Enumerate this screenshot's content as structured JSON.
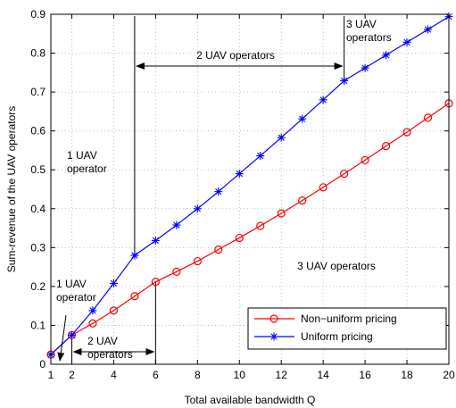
{
  "chart_data": {
    "type": "line",
    "title": "",
    "xlabel": "Total available bandwidth Q",
    "ylabel": "Sum-revenue of the UAV operators",
    "xlim": [
      1,
      20
    ],
    "ylim": [
      0,
      0.9
    ],
    "grid": true,
    "x_ticks": [
      2,
      4,
      6,
      8,
      10,
      12,
      14,
      16,
      18,
      20
    ],
    "y_ticks": [
      0,
      0.1,
      0.2,
      0.3,
      0.4,
      0.5,
      0.6,
      0.7,
      0.8,
      0.9
    ],
    "x_tick_labels": [
      "2",
      "4",
      "6",
      "8",
      "10",
      "12",
      "14",
      "16",
      "18",
      "20"
    ],
    "y_tick_labels": [
      "0",
      "0.1",
      "0.2",
      "0.3",
      "0.4",
      "0.5",
      "0.6",
      "0.7",
      "0.8",
      "0.9"
    ],
    "x_extra_label": "1",
    "x": [
      1,
      2,
      3,
      4,
      5,
      6,
      7,
      8,
      9,
      10,
      11,
      12,
      13,
      14,
      15,
      16,
      17,
      18,
      19,
      20
    ],
    "series": [
      {
        "name": "Non−uniform pricing",
        "color": "#ff0000",
        "marker": "circle",
        "values": [
          0.025,
          0.075,
          0.105,
          0.138,
          0.175,
          0.212,
          0.238,
          0.265,
          0.295,
          0.325,
          0.356,
          0.388,
          0.421,
          0.455,
          0.49,
          0.525,
          0.561,
          0.597,
          0.634,
          0.671
        ]
      },
      {
        "name": "Uniform pricing",
        "color": "#0000ff",
        "marker": "star",
        "values": [
          0.025,
          0.075,
          0.138,
          0.208,
          0.28,
          0.318,
          0.358,
          0.4,
          0.444,
          0.49,
          0.536,
          0.583,
          0.631,
          0.68,
          0.729,
          0.762,
          0.795,
          0.828,
          0.861,
          0.894
        ]
      }
    ],
    "legend_position": "bottom-right",
    "annotations": {
      "one_uav_low": [
        "1 UAV",
        "operator"
      ],
      "two_uav_low": [
        "2 UAV",
        "operators"
      ],
      "one_uav_mid": [
        "1 UAV",
        "operator"
      ],
      "two_uav_top": "2 UAV operators",
      "three_uav_top": [
        "3 UAV",
        "operators"
      ],
      "three_uav_right": "3 UAV operators"
    },
    "marker_lines_x": [
      2,
      5,
      6,
      15
    ]
  }
}
